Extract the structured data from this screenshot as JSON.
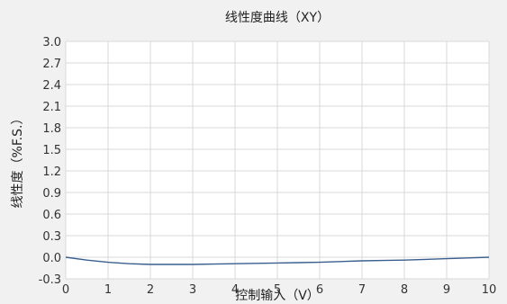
{
  "chart_data": {
    "type": "line",
    "title": "线性度曲线（XY）",
    "xlabel": "控制输入（V）",
    "ylabel": "线性度（%F.S.）",
    "xlim": [
      0,
      10
    ],
    "ylim": [
      -0.3,
      3.0
    ],
    "xticks": [
      "0",
      "1",
      "2",
      "3",
      "4",
      "5",
      "6",
      "7",
      "8",
      "9",
      "10"
    ],
    "yticks": [
      "-0.3",
      "0.0",
      "0.3",
      "0.6",
      "0.9",
      "1.2",
      "1.5",
      "1.8",
      "2.1",
      "2.4",
      "2.7",
      "3.0"
    ],
    "grid": true,
    "series": [
      {
        "x": [
          0,
          0.5,
          1,
          1.5,
          2,
          2.5,
          3,
          3.5,
          4,
          4.5,
          5,
          5.5,
          6,
          6.5,
          7,
          7.5,
          8,
          8.5,
          9,
          9.5,
          10
        ],
        "y": [
          0.0,
          -0.04,
          -0.07,
          -0.09,
          -0.1,
          -0.1,
          -0.1,
          -0.095,
          -0.09,
          -0.085,
          -0.08,
          -0.075,
          -0.07,
          -0.06,
          -0.05,
          -0.045,
          -0.04,
          -0.03,
          -0.02,
          -0.01,
          0.0
        ],
        "color": "#3a5f8f"
      }
    ]
  }
}
